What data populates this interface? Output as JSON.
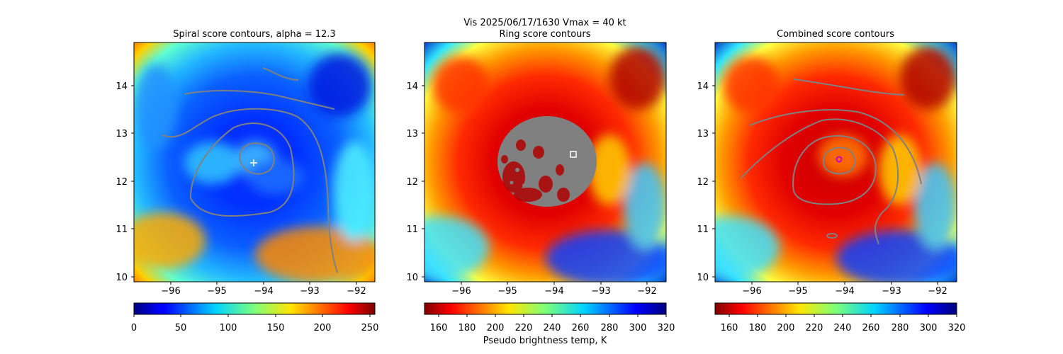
{
  "suptitle": "Vis  2025/06/17/1630    Vmax = 40 kt",
  "colorbar_label": "Pseudo brightness temp, K",
  "chart_data": [
    {
      "type": "heatmap",
      "title": "Spiral score contours, alpha = 12.3",
      "xlim": [
        -96.8,
        -91.6
      ],
      "ylim": [
        9.9,
        14.9
      ],
      "xticks": [
        -96,
        -95,
        -94,
        -93,
        -92
      ],
      "xtick_labels": [
        "−96",
        "−95",
        "−94",
        "−93",
        "−92"
      ],
      "yticks": [
        10,
        11,
        12,
        13,
        14
      ],
      "ytick_labels": [
        "10",
        "11",
        "12",
        "13",
        "14"
      ],
      "colormap": "jet",
      "colorbar_range": [
        0,
        255
      ],
      "colorbar_ticks": [
        0,
        50,
        100,
        150,
        200,
        250
      ],
      "contour_color": "#808080",
      "center_marker": {
        "lon": -94.2,
        "lat": 12.38,
        "symbol": "plus",
        "color": "#ffffff"
      }
    },
    {
      "type": "heatmap",
      "title": "Ring score contours",
      "xlim": [
        -96.8,
        -91.6
      ],
      "ylim": [
        9.9,
        14.9
      ],
      "xticks": [
        -96,
        -95,
        -94,
        -93,
        -92
      ],
      "xtick_labels": [
        "−96",
        "−95",
        "−94",
        "−93",
        "−92"
      ],
      "yticks": [
        10,
        11,
        12,
        13,
        14
      ],
      "ytick_labels": [
        "10",
        "11",
        "12",
        "13",
        "14"
      ],
      "colormap": "jet_r",
      "colorbar_range": [
        150,
        320
      ],
      "colorbar_ticks": [
        160,
        180,
        200,
        220,
        240,
        260,
        280,
        300,
        320
      ],
      "contour_color": "#808080",
      "center_marker": {
        "lon": -93.58,
        "lat": 12.55,
        "symbol": "square",
        "color": "#ffffff"
      }
    },
    {
      "type": "heatmap",
      "title": "Combined score contours",
      "xlim": [
        -96.8,
        -91.6
      ],
      "ylim": [
        9.9,
        14.9
      ],
      "xticks": [
        -96,
        -95,
        -94,
        -93,
        -92
      ],
      "xtick_labels": [
        "−96",
        "−95",
        "−94",
        "−93",
        "−92"
      ],
      "yticks": [
        10,
        11,
        12,
        13,
        14
      ],
      "ytick_labels": [
        "10",
        "11",
        "12",
        "13",
        "14"
      ],
      "colormap": "jet_r",
      "colorbar_range": [
        150,
        320
      ],
      "colorbar_ticks": [
        160,
        180,
        200,
        220,
        240,
        260,
        280,
        300,
        320
      ],
      "contour_color": "#808080",
      "center_marker": {
        "lon": -94.12,
        "lat": 12.46,
        "symbol": "circle",
        "color": "#cc00cc"
      }
    }
  ]
}
